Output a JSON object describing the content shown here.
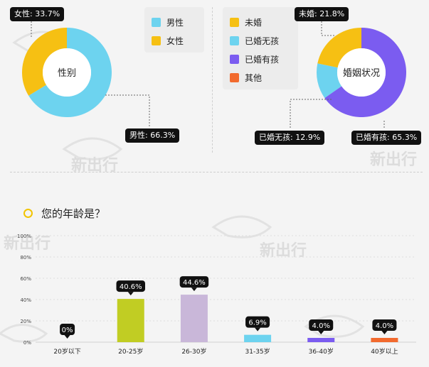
{
  "watermark": "新出行",
  "gender": {
    "center_label": "性别",
    "legend": [
      {
        "label": "男性",
        "color": "#6dd3ef"
      },
      {
        "label": "女性",
        "color": "#f6c013"
      }
    ],
    "callouts": {
      "female": "女性: 33.7%",
      "male": "男性: 66.3%"
    }
  },
  "marital": {
    "center_label": "婚姻状况",
    "legend": [
      {
        "label": "未婚",
        "color": "#f6c013"
      },
      {
        "label": "已婚无孩",
        "color": "#6dd3ef"
      },
      {
        "label": "已婚有孩",
        "color": "#7b5cf0"
      },
      {
        "label": "其他",
        "color": "#f26a2e"
      }
    ],
    "callouts": {
      "single": "未婚: 21.8%",
      "married_no_kids": "已婚无孩: 12.9%",
      "married_kids": "已婚有孩: 65.3%"
    }
  },
  "age": {
    "question": "您的年龄是？"
  },
  "chart_data": [
    {
      "type": "pie",
      "title": "性别",
      "categories": [
        "男性",
        "女性"
      ],
      "values": [
        66.3,
        33.7
      ],
      "colors": [
        "#6dd3ef",
        "#f6c013"
      ],
      "legend": "right"
    },
    {
      "type": "pie",
      "title": "婚姻状况",
      "categories": [
        "未婚",
        "已婚无孩",
        "已婚有孩",
        "其他"
      ],
      "values": [
        21.8,
        12.9,
        65.3,
        0
      ],
      "colors": [
        "#f6c013",
        "#6dd3ef",
        "#7b5cf0",
        "#f26a2e"
      ],
      "legend": "left"
    },
    {
      "type": "bar",
      "title": "您的年龄是？",
      "categories": [
        "20岁以下",
        "20-25岁",
        "26-30岁",
        "31-35岁",
        "36-40岁",
        "40岁以上"
      ],
      "values": [
        0,
        40.6,
        44.6,
        6.9,
        4.0,
        4.0
      ],
      "labels": [
        "0%",
        "40.6%",
        "44.6%",
        "6.9%",
        "4.0%",
        "4.0%"
      ],
      "colors": [
        "#c8c8c8",
        "#c1cd23",
        "#c9b7d9",
        "#6dd3ef",
        "#7b5cf0",
        "#f26a2e"
      ],
      "yticks": [
        "0%",
        "20%",
        "40%",
        "60%",
        "80%",
        "100%"
      ],
      "ylim": [
        0,
        100
      ]
    }
  ]
}
